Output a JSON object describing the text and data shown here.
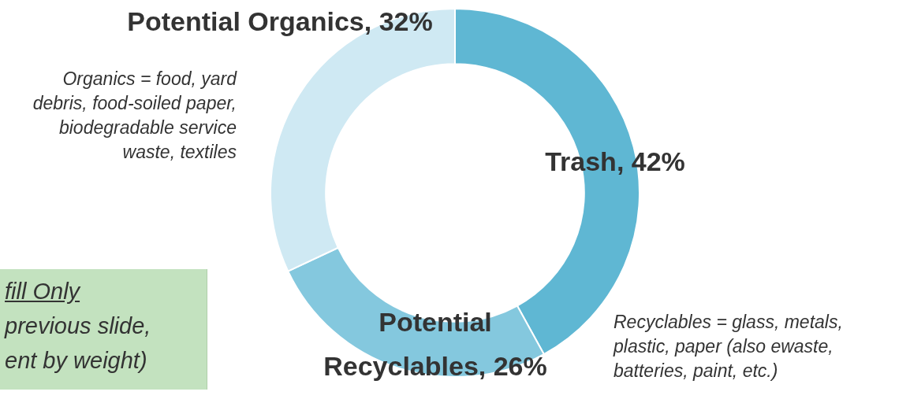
{
  "chart_data": {
    "type": "donut",
    "categories": [
      "Trash",
      "Potential Recyclables",
      "Potential Organics"
    ],
    "values": [
      42,
      26,
      32
    ],
    "value_labels": [
      "42%",
      "26%",
      "32%"
    ],
    "colors": [
      "#5fb7d3",
      "#84c8de",
      "#cfe9f3"
    ],
    "legend": false,
    "annotations": [
      "Organics = food, yard debris, food-soiled paper, biodegradable service waste, textiles",
      "Recyclables = glass, metals, plastic, paper (also ewaste, batteries, paint, etc.)",
      "fill Only",
      "previous slide,",
      "ent by weight)"
    ]
  }
}
